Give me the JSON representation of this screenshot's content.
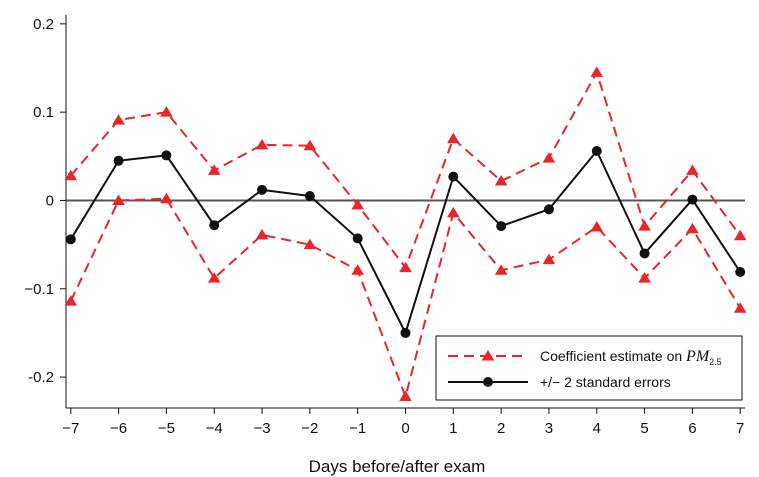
{
  "chart_data": {
    "type": "line",
    "xlabel": "Days before/after exam",
    "ylabel": "",
    "title": "",
    "x": [
      -7,
      -6,
      -5,
      -4,
      -3,
      -2,
      -1,
      0,
      1,
      2,
      3,
      4,
      5,
      6,
      7
    ],
    "x_tick_labels": [
      "−7",
      "−6",
      "−5",
      "−4",
      "−3",
      "−2",
      "−1",
      "0",
      "1",
      "2",
      "3",
      "4",
      "5",
      "6",
      "7"
    ],
    "y_ticks": [
      -0.2,
      -0.1,
      0,
      0.1,
      0.2
    ],
    "y_tick_labels": [
      "-0.2",
      "−0.1",
      "0",
      "0.1",
      "0.2"
    ],
    "ylim": [
      -0.235,
      0.21
    ],
    "xlim": [
      -7.1,
      7.1
    ],
    "zero_line": true,
    "grid": false,
    "legend_position": "bottom-right",
    "series": [
      {
        "key": "upper",
        "values": [
          0.028,
          0.091,
          0.1,
          0.034,
          0.063,
          0.062,
          -0.005,
          -0.076,
          0.07,
          0.022,
          0.048,
          0.145,
          -0.029,
          0.034,
          -0.04
        ],
        "color": "#e8252a",
        "marker": "triangle",
        "dash": true
      },
      {
        "key": "lower",
        "values": [
          -0.114,
          0.0,
          0.002,
          -0.088,
          -0.039,
          -0.05,
          -0.079,
          -0.222,
          -0.014,
          -0.079,
          -0.067,
          -0.03,
          -0.088,
          -0.032,
          -0.122
        ],
        "color": "#e8252a",
        "marker": "triangle",
        "dash": true
      },
      {
        "key": "estimate",
        "values": [
          -0.044,
          0.045,
          0.051,
          -0.028,
          0.012,
          0.005,
          -0.043,
          -0.15,
          0.027,
          -0.029,
          -0.01,
          0.056,
          -0.06,
          0.001,
          -0.081
        ],
        "color": "#111111",
        "marker": "circle",
        "dash": false
      }
    ],
    "legend": [
      {
        "series_key": "upper",
        "text": "Coefficient estimate on ",
        "math": "PM",
        "sub": "2.5"
      },
      {
        "series_key": "estimate",
        "text": "+/− 2 standard errors",
        "math": "",
        "sub": ""
      }
    ]
  }
}
